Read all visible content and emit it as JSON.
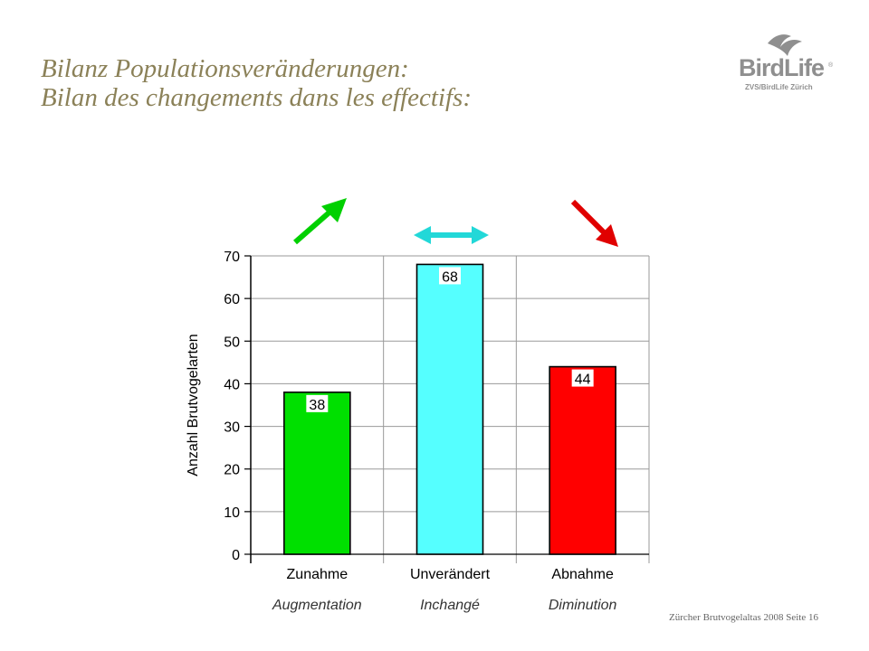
{
  "slide": {
    "title_de": "Bilanz Populationsveränderungen:",
    "title_fr": "Bilan des changements dans les effectifs:",
    "footer": "Zürcher Brutvogelaltas 2008  Seite 16"
  },
  "logo": {
    "name": "BirdLife",
    "subtitle": "ZVS/BirdLife Zürich",
    "reg": "®",
    "icon": "bird-icon"
  },
  "chart_data": {
    "type": "bar",
    "categories": [
      "Zunahme",
      "Unverändert",
      "Abnahme"
    ],
    "categories_fr": [
      "Augmentation",
      "Inchangé",
      "Diminution"
    ],
    "values": [
      38,
      68,
      44
    ],
    "data_labels": [
      "38",
      "68",
      "44"
    ],
    "colors": [
      "#00e000",
      "#55ffff",
      "#ff0000"
    ],
    "arrows": [
      "up-right-arrow-icon",
      "left-right-arrow-icon",
      "down-right-arrow-icon"
    ],
    "arrow_colors": [
      "#00d000",
      "#22d8d8",
      "#e00000"
    ],
    "ylabel": "Anzahl Brutvogelarten",
    "xlabel": "",
    "ylim": [
      0,
      70
    ],
    "yticks": [
      "0",
      "10",
      "20",
      "30",
      "40",
      "50",
      "60",
      "70"
    ],
    "grid": true,
    "legend": "none"
  }
}
